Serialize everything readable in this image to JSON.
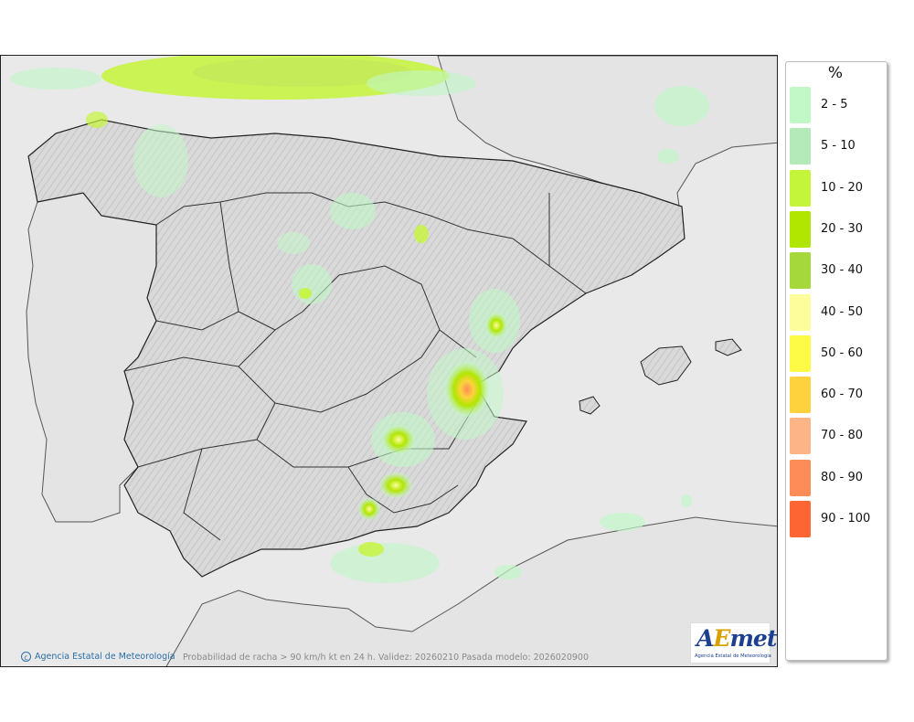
{
  "map": {
    "credit": "Agencia Estatal de Meteorología",
    "caption": "Probabilidad de racha > 90 km/h kt en 24 h. Validez: 20260210 Pasada modelo: 2026020900",
    "logo": {
      "word": "AEmet",
      "subtitle": "Agencia Estatal de Meteorología"
    },
    "colors": {
      "sea": "#e9e9e9",
      "land": "#dcdcdc",
      "border": "#2b2b2b"
    }
  },
  "legend": {
    "title": "%",
    "items": [
      {
        "label": "2 - 5",
        "color": "#c2f7c8"
      },
      {
        "label": "5 - 10",
        "color": "#b4e9b9"
      },
      {
        "label": "10 - 20",
        "color": "#c5f53a"
      },
      {
        "label": "20 - 30",
        "color": "#b1e600"
      },
      {
        "label": "30 - 40",
        "color": "#a5d83b"
      },
      {
        "label": "40 - 50",
        "color": "#fdfd9b"
      },
      {
        "label": "50 - 60",
        "color": "#fdfb45"
      },
      {
        "label": "60 - 70",
        "color": "#fdd23d"
      },
      {
        "label": "70 - 80",
        "color": "#fdb587"
      },
      {
        "label": "80 - 90",
        "color": "#fd8c59"
      },
      {
        "label": "90 - 100",
        "color": "#fd6633"
      }
    ]
  }
}
